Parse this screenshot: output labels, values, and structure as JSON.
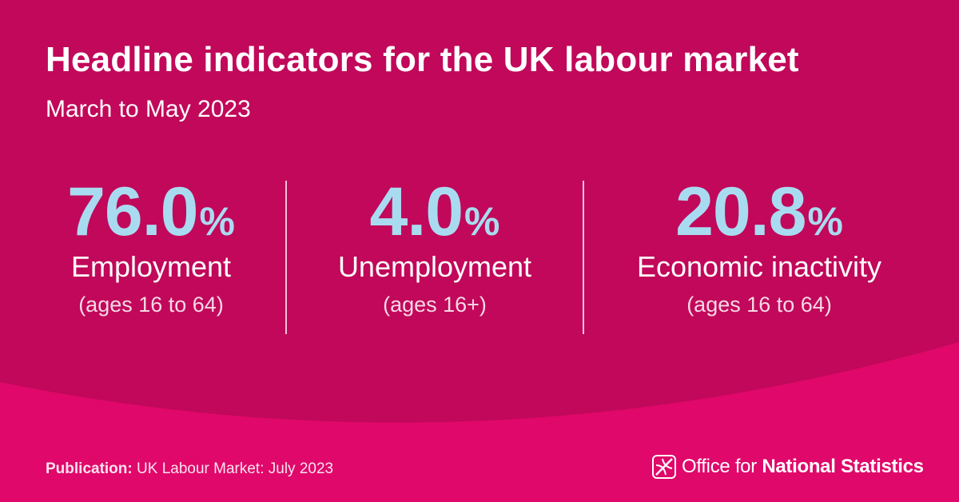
{
  "header": {
    "title": "Headline indicators for the UK labour market",
    "subtitle": "March to May 2023"
  },
  "indicators": [
    {
      "value": "76.0",
      "unit": "%",
      "label": "Employment",
      "qualifier": "(ages 16 to 64)"
    },
    {
      "value": "4.0",
      "unit": "%",
      "label": "Unemployment",
      "qualifier": "(ages 16+)"
    },
    {
      "value": "20.8",
      "unit": "%",
      "label": "Economic inactivity",
      "qualifier": "(ages 16 to 64)"
    }
  ],
  "footer": {
    "publication_label": "Publication:",
    "publication_title": "UK Labour Market: July 2023",
    "logo_text_plain": "Office for",
    "logo_text_bold": "National Statistics",
    "logo_icon": "ons-logo-icon"
  },
  "colors": {
    "background": "#c1085a",
    "wave": "#e0086a",
    "value": "#a9dbf0",
    "text": "#ffffff"
  }
}
